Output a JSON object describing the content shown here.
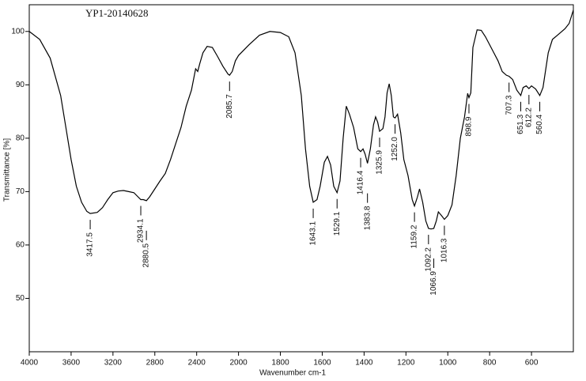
{
  "chart_data": {
    "type": "line",
    "title": "YP1-20140628",
    "x_label": "Wavenumber cm-1",
    "y_label": "Transmittance [%]",
    "color": "#000000",
    "xlim": [
      4000,
      400
    ],
    "x_break": 2000,
    "x_break_factor": 2,
    "ylim": [
      40,
      105
    ],
    "xticks": [
      4000,
      3600,
      3200,
      2800,
      2400,
      2000,
      1800,
      1600,
      1400,
      1200,
      1000,
      800,
      600
    ],
    "yticks": [
      50,
      60,
      70,
      80,
      90,
      100
    ],
    "x": [
      4000,
      3900,
      3800,
      3700,
      3650,
      3600,
      3550,
      3500,
      3450,
      3417.5,
      3350,
      3300,
      3250,
      3200,
      3150,
      3100,
      3050,
      3000,
      2960,
      2934.1,
      2910,
      2880.5,
      2850,
      2800,
      2750,
      2700,
      2650,
      2600,
      2550,
      2500,
      2450,
      2410,
      2390,
      2370,
      2340,
      2300,
      2250,
      2200,
      2150,
      2100,
      2085.7,
      2060,
      2030,
      2000,
      1950,
      1900,
      1850,
      1800,
      1760,
      1730,
      1700,
      1680,
      1660,
      1643.1,
      1625,
      1610,
      1590,
      1575,
      1560,
      1545,
      1529.1,
      1515,
      1500,
      1485,
      1470,
      1450,
      1430,
      1416.4,
      1405,
      1395,
      1383.8,
      1370,
      1355,
      1345,
      1335,
      1325.9,
      1310,
      1300,
      1290,
      1280,
      1270,
      1260,
      1252,
      1240,
      1225,
      1210,
      1190,
      1170,
      1159.2,
      1145,
      1135,
      1120,
      1105,
      1092.2,
      1080,
      1066.9,
      1055,
      1045,
      1030,
      1016.3,
      1000,
      980,
      960,
      940,
      920,
      905,
      898.9,
      890,
      880,
      860,
      840,
      820,
      800,
      780,
      760,
      740,
      720,
      707.3,
      690,
      670,
      651.3,
      640,
      625,
      612.2,
      600,
      580,
      560.4,
      545,
      520,
      500,
      470,
      440,
      420,
      400
    ],
    "values": [
      100,
      98.5,
      95,
      88,
      82,
      76,
      71,
      68,
      66.3,
      65.9,
      66.1,
      67,
      68.5,
      69.8,
      70.1,
      70.2,
      70,
      69.8,
      69,
      68.5,
      68.5,
      68.3,
      69,
      70.5,
      72,
      73.4,
      76,
      79,
      82,
      86,
      89,
      93,
      92.5,
      94,
      96,
      97.2,
      97,
      95.3,
      93.5,
      92,
      91.8,
      92.5,
      94.5,
      95.5,
      97.5,
      99.3,
      100,
      99.8,
      99,
      96,
      88,
      78,
      71,
      68,
      68.5,
      71,
      75.5,
      76.6,
      75,
      71,
      69.8,
      72,
      80,
      86,
      84.5,
      82,
      78,
      77.5,
      78,
      77,
      75.3,
      78,
      82.5,
      84,
      83,
      81.3,
      81.8,
      84,
      88.5,
      90.2,
      88,
      84,
      83.8,
      84.5,
      81,
      76,
      73,
      68.5,
      67.3,
      69,
      70.5,
      68,
      64.5,
      63.1,
      63,
      63.1,
      64.5,
      66.2,
      65.5,
      64.8,
      65.5,
      67.5,
      73,
      80,
      84,
      88.4,
      87.6,
      88.5,
      97,
      100.3,
      100.2,
      99,
      97.5,
      96,
      94.5,
      92.5,
      91.8,
      91.6,
      91,
      89,
      88,
      89.5,
      89.8,
      89.3,
      89.8,
      89.2,
      88,
      89.5,
      96,
      98.5,
      99.5,
      100.5,
      101.5,
      104
    ],
    "peak_labels": [
      3417.5,
      2934.1,
      2880.5,
      2085.7,
      1643.1,
      1529.1,
      1416.4,
      1383.8,
      1325.9,
      {
        "value": 1252.0,
        "label": "1252.0"
      },
      1159.2,
      1092.2,
      1066.9,
      1016.3,
      898.9,
      707.3,
      651.3,
      612.2,
      560.4
    ]
  }
}
